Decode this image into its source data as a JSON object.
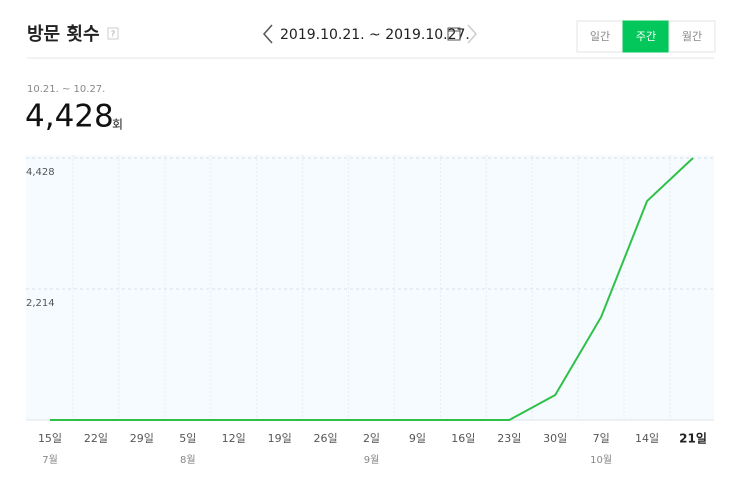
{
  "header": {
    "title": "방문 횟수",
    "help": "?",
    "date_range": "2019.10.21. ~ 2019.10.27.",
    "tabs": [
      "일간",
      "주간",
      "월간"
    ],
    "active_tab": 1
  },
  "summary": {
    "period": "10.21. ~ 10.27.",
    "value": "4,428",
    "unit": "회"
  },
  "chart_data": {
    "type": "line",
    "categories": [
      "15일",
      "22일",
      "29일",
      "5일",
      "12일",
      "19일",
      "26일",
      "2일",
      "9일",
      "16일",
      "23일",
      "30일",
      "7일",
      "14일",
      "21일"
    ],
    "month_labels": [
      "7월",
      null,
      null,
      "8월",
      null,
      null,
      null,
      "9월",
      null,
      null,
      null,
      null,
      "10월",
      null,
      null
    ],
    "values": [
      0,
      0,
      0,
      0,
      0,
      0,
      0,
      0,
      0,
      0,
      0,
      422,
      1741,
      3701,
      4428
    ],
    "color": "#2fc04a",
    "ylim": [
      0,
      4428
    ],
    "yticks": [
      {
        "value": 2214,
        "label": "2,214"
      },
      {
        "value": 4428,
        "label": "4,428"
      }
    ],
    "grid": true,
    "highlight_last": true
  }
}
